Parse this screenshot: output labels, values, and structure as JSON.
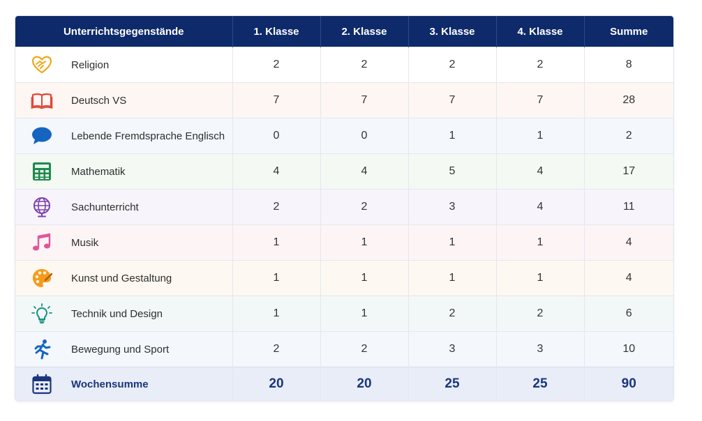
{
  "header": {
    "subject": "Unterrichtsgegenstände",
    "k1": "1. Klasse",
    "k2": "2. Klasse",
    "k3": "3. Klasse",
    "k4": "4. Klasse",
    "sum": "Summe"
  },
  "rows": [
    {
      "subject": "Religion",
      "icon": "heart-hands-icon",
      "bg": "#ffffff",
      "k1": "2",
      "k2": "2",
      "k3": "2",
      "k4": "2",
      "sum": "8"
    },
    {
      "subject": "Deutsch VS",
      "icon": "book-icon",
      "bg": "#fdf6f2",
      "k1": "7",
      "k2": "7",
      "k3": "7",
      "k4": "7",
      "sum": "28"
    },
    {
      "subject": "Lebende Fremdsprache Englisch",
      "icon": "speech-bubble-icon",
      "bg": "#f4f7fc",
      "k1": "0",
      "k2": "0",
      "k3": "1",
      "k4": "1",
      "sum": "2"
    },
    {
      "subject": "Mathematik",
      "icon": "calculator-icon",
      "bg": "#f4f9f4",
      "k1": "4",
      "k2": "4",
      "k3": "5",
      "k4": "4",
      "sum": "17"
    },
    {
      "subject": "Sachunterricht",
      "icon": "globe-icon",
      "bg": "#f7f4fb",
      "k1": "2",
      "k2": "2",
      "k3": "3",
      "k4": "4",
      "sum": "11"
    },
    {
      "subject": "Musik",
      "icon": "music-note-icon",
      "bg": "#fdf4f6",
      "k1": "1",
      "k2": "1",
      "k3": "1",
      "k4": "1",
      "sum": "4"
    },
    {
      "subject": "Kunst und Gestaltung",
      "icon": "palette-icon",
      "bg": "#fdf8f1",
      "k1": "1",
      "k2": "1",
      "k3": "1",
      "k4": "1",
      "sum": "4"
    },
    {
      "subject": "Technik und Design",
      "icon": "lightbulb-icon",
      "bg": "#f2f8f7",
      "k1": "1",
      "k2": "1",
      "k3": "2",
      "k4": "2",
      "sum": "6"
    },
    {
      "subject": "Bewegung und Sport",
      "icon": "runner-icon",
      "bg": "#f4f7fc",
      "k1": "2",
      "k2": "2",
      "k3": "3",
      "k4": "3",
      "sum": "10"
    }
  ],
  "total": {
    "subject": "Wochensumme",
    "icon": "calendar-icon",
    "k1": "20",
    "k2": "20",
    "k3": "25",
    "k4": "25",
    "sum": "90"
  },
  "colors": {
    "header_bg": "#0e2a6b",
    "total_text": "#1b347c"
  }
}
